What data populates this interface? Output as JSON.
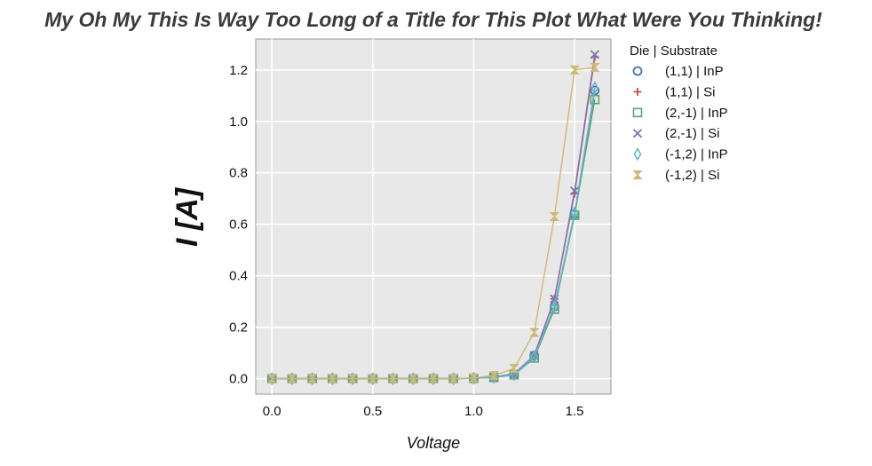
{
  "chart_data": {
    "type": "line",
    "title": "My Oh My This Is Way Too Long of a Title for This Plot What Were You Thinking!",
    "xlabel": "Voltage",
    "ylabel": "I [A]",
    "xlim": [
      -0.08,
      1.68
    ],
    "ylim": [
      -0.06,
      1.32
    ],
    "grid": true,
    "x_ticks": [
      "0.0",
      "0.5",
      "1.0",
      "1.5"
    ],
    "y_ticks": [
      "0.0",
      "0.2",
      "0.4",
      "0.6",
      "0.8",
      "1.0",
      "1.2"
    ],
    "legend": {
      "title": "Die | Substrate",
      "placement": "outside-right"
    },
    "x": [
      0,
      0.1,
      0.2,
      0.3,
      0.4,
      0.5,
      0.6,
      0.7,
      0.8,
      0.9,
      1.0,
      1.1,
      1.2,
      1.3,
      1.4,
      1.5,
      1.6
    ],
    "series": [
      {
        "name": "(1,1) | InP",
        "color": "#4c72b0",
        "marker": "circle",
        "values": [
          0,
          0,
          0,
          0,
          0,
          0,
          0,
          0,
          0,
          0,
          0.002,
          0.005,
          0.015,
          0.09,
          0.28,
          0.64,
          1.12
        ]
      },
      {
        "name": "(1,1) | Si",
        "color": "#c44e52",
        "marker": "plus",
        "values": [
          0,
          0,
          0,
          0,
          0,
          0,
          0,
          0,
          0,
          0,
          0.002,
          0.006,
          0.018,
          0.09,
          0.31,
          0.72,
          1.25
        ]
      },
      {
        "name": "(2,-1) | InP",
        "color": "#55a868",
        "marker": "square",
        "values": [
          0,
          0,
          0,
          0,
          0,
          0,
          0,
          0,
          0,
          0,
          0.001,
          0.005,
          0.015,
          0.08,
          0.27,
          0.635,
          1.085
        ]
      },
      {
        "name": "(2,-1) | Si",
        "color": "#8172b2",
        "marker": "x",
        "values": [
          0,
          0,
          0,
          0,
          0,
          0,
          0,
          0,
          0,
          0,
          0.002,
          0.006,
          0.019,
          0.09,
          0.31,
          0.73,
          1.26
        ]
      },
      {
        "name": "(-1,2) | InP",
        "color": "#64b5cd",
        "marker": "diamond",
        "values": [
          0,
          0,
          0,
          0,
          0,
          0,
          0,
          0,
          0,
          0,
          0.002,
          0.005,
          0.016,
          0.085,
          0.28,
          0.645,
          1.13
        ]
      },
      {
        "name": "(-1,2) | Si",
        "color": "#ccb974",
        "marker": "bowtie",
        "values": [
          0,
          0,
          0,
          0,
          0,
          0,
          0,
          0,
          0,
          0,
          0.003,
          0.012,
          0.04,
          0.18,
          0.63,
          1.2,
          1.21
        ]
      }
    ]
  }
}
